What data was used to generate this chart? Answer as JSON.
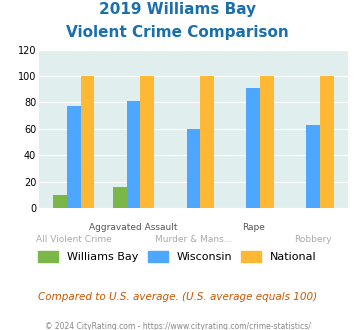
{
  "title_line1": "2019 Williams Bay",
  "title_line2": "Violent Crime Comparison",
  "williams_bay": [
    10,
    16,
    0,
    0,
    0
  ],
  "wisconsin": [
    77,
    81,
    60,
    91,
    63
  ],
  "national": [
    100,
    100,
    100,
    100,
    100
  ],
  "color_wb": "#7ab648",
  "color_wi": "#4da6ff",
  "color_nat": "#ffb833",
  "bg_color": "#e0eeee",
  "ylim": [
    0,
    120
  ],
  "yticks": [
    0,
    20,
    40,
    60,
    80,
    100,
    120
  ],
  "title_color": "#1a6faf",
  "footer_text": "Compared to U.S. average. (U.S. average equals 100)",
  "copyright_text": "© 2024 CityRating.com - https://www.cityrating.com/crime-statistics/",
  "footer_color": "#cc5500",
  "copyright_color": "#888888",
  "legend_labels": [
    "Williams Bay",
    "Wisconsin",
    "National"
  ],
  "row1_labels": [
    "",
    "Aggravated Assault",
    "",
    "Rape",
    ""
  ],
  "row2_labels": [
    "All Violent Crime",
    "",
    "Murder & Mans...",
    "",
    "Robbery"
  ]
}
